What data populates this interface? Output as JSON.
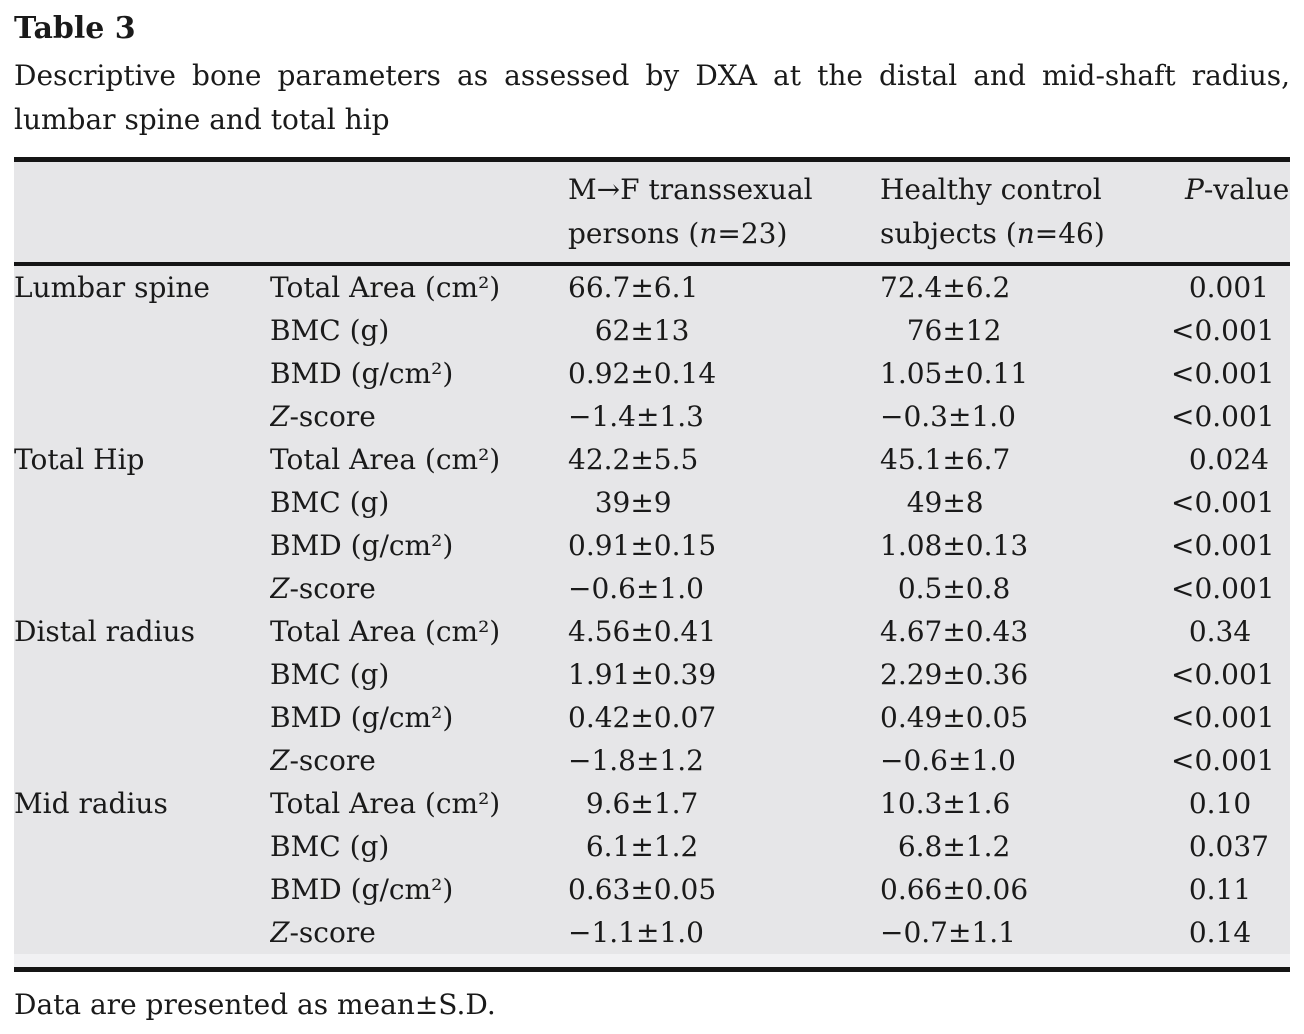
{
  "page": {
    "title": "Table 3",
    "caption_line1": "Descriptive bone parameters as assessed by DXA at the distal and mid-shaft radius,",
    "caption_line2": "lumbar spine and total hip",
    "footnote": "Data are presented as mean±S.D."
  },
  "table": {
    "header": {
      "group1_line1": "M→F transsexual",
      "group1_line2_pre": "persons (",
      "group1_n": "n",
      "group1_line2_post": "=23)",
      "group2_line1": "Healthy control",
      "group2_line2_pre": "subjects (",
      "group2_n": "n",
      "group2_line2_post": "=46)",
      "p_italic": "P",
      "p_rest": "-value"
    },
    "params": {
      "total_area": "Total Area (cm²)",
      "bmc": "BMC (g)",
      "bmd": "BMD (g/cm²)",
      "z_italic": "Z",
      "z_rest": "-score"
    },
    "groups": [
      {
        "name": "Lumbar spine",
        "rows": [
          {
            "mf": "66.7±6.1",
            "hc": "72.4±6.2",
            "p": " 0.001"
          },
          {
            "mf": "  62±13",
            "hc": "  76±12",
            "p": "<0.001"
          },
          {
            "mf": "0.92±0.14",
            "hc": "1.05±0.11",
            "p": "<0.001"
          },
          {
            "mf": "−1.4±1.3",
            "hc": "−0.3±1.0",
            "p": "<0.001"
          }
        ]
      },
      {
        "name": "Total Hip",
        "rows": [
          {
            "mf": "42.2±5.5",
            "hc": "45.1±6.7",
            "p": " 0.024"
          },
          {
            "mf": "  39±9",
            "hc": "  49±8",
            "p": "<0.001"
          },
          {
            "mf": "0.91±0.15",
            "hc": "1.08±0.13",
            "p": "<0.001"
          },
          {
            "mf": "−0.6±1.0",
            "hc": " 0.5±0.8",
            "p": "<0.001"
          }
        ]
      },
      {
        "name": "Distal radius",
        "rows": [
          {
            "mf": "4.56±0.41",
            "hc": "4.67±0.43",
            "p": " 0.34"
          },
          {
            "mf": "1.91±0.39",
            "hc": "2.29±0.36",
            "p": "<0.001"
          },
          {
            "mf": "0.42±0.07",
            "hc": "0.49±0.05",
            "p": "<0.001"
          },
          {
            "mf": "−1.8±1.2",
            "hc": "−0.6±1.0",
            "p": "<0.001"
          }
        ]
      },
      {
        "name": "Mid radius",
        "rows": [
          {
            "mf": " 9.6±1.7",
            "hc": "10.3±1.6",
            "p": " 0.10"
          },
          {
            "mf": " 6.1±1.2",
            "hc": " 6.8±1.2",
            "p": " 0.037"
          },
          {
            "mf": "0.63±0.05",
            "hc": "0.66±0.06",
            "p": " 0.11"
          },
          {
            "mf": "−1.1±1.0",
            "hc": "−0.7±1.1",
            "p": " 0.14"
          }
        ]
      }
    ]
  }
}
